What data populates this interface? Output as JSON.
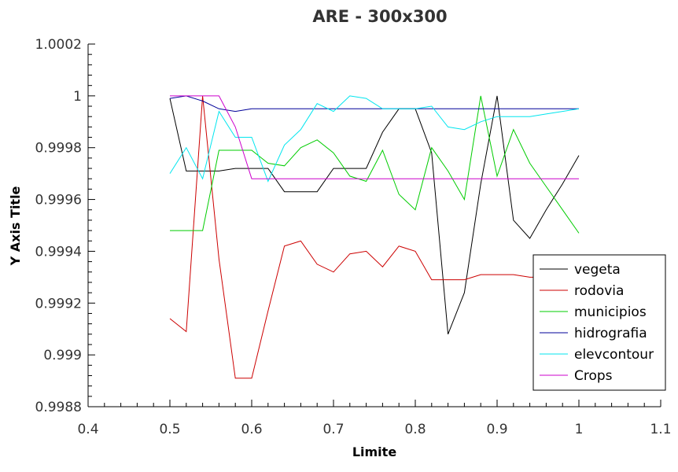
{
  "chart_data": {
    "type": "line",
    "title": "ARE - 300x300",
    "xlabel": "Limite",
    "ylabel": "Y Axis Title",
    "xlim": [
      0.4,
      1.1
    ],
    "ylim": [
      0.9988,
      1.0002
    ],
    "x_ticks": [
      {
        "value": 0.4,
        "label": "0.4"
      },
      {
        "value": 0.5,
        "label": "0.5"
      },
      {
        "value": 0.6,
        "label": "0.6"
      },
      {
        "value": 0.7,
        "label": "0.7"
      },
      {
        "value": 0.8,
        "label": "0.8"
      },
      {
        "value": 0.9,
        "label": "0.9"
      },
      {
        "value": 1.0,
        "label": "1"
      },
      {
        "value": 1.1,
        "label": "1.1"
      }
    ],
    "y_ticks": [
      {
        "value": 0.9988,
        "label": "0.9988"
      },
      {
        "value": 0.999,
        "label": "0.999"
      },
      {
        "value": 0.9992,
        "label": "0.9992"
      },
      {
        "value": 0.9994,
        "label": "0.9994"
      },
      {
        "value": 0.9996,
        "label": "0.9996"
      },
      {
        "value": 0.9998,
        "label": "0.9998"
      },
      {
        "value": 1.0,
        "label": "1"
      },
      {
        "value": 1.0002,
        "label": "1.0002"
      }
    ],
    "grid": false,
    "legend_position": "bottom-right",
    "x": [
      0.5,
      0.52,
      0.54,
      0.56,
      0.58,
      0.6,
      0.62,
      0.64,
      0.66,
      0.68,
      0.7,
      0.72,
      0.74,
      0.76,
      0.78,
      0.8,
      0.82,
      0.84,
      0.86,
      0.88,
      0.9,
      0.92,
      0.94,
      0.96,
      0.98,
      1.0
    ],
    "series": [
      {
        "name": "vegeta",
        "color": "#000000",
        "values": [
          0.99999,
          0.99971,
          0.99971,
          0.99971,
          0.99972,
          0.99972,
          0.99972,
          0.99963,
          0.99963,
          0.99963,
          0.99972,
          0.99972,
          0.99972,
          0.99986,
          0.99995,
          0.99995,
          0.99978,
          0.99908,
          0.99924,
          0.99966,
          1.0,
          0.99952,
          0.99945,
          0.99956,
          0.99966,
          0.99977
        ]
      },
      {
        "name": "rodovia",
        "color": "#cc0000",
        "values": [
          0.99914,
          0.99909,
          1.0,
          0.99937,
          0.99891,
          0.99891,
          0.99917,
          0.99942,
          0.99944,
          0.99935,
          0.99932,
          0.99939,
          0.9994,
          0.99934,
          0.99942,
          0.9994,
          0.99929,
          0.99929,
          0.99929,
          0.99931,
          0.99931,
          0.99931,
          0.9993,
          0.9993,
          0.9993,
          0.99931
        ]
      },
      {
        "name": "municipios",
        "color": "#00cc00",
        "values": [
          0.99948,
          0.99948,
          0.99948,
          0.99979,
          0.99979,
          0.99979,
          0.99974,
          0.99973,
          0.9998,
          0.99983,
          0.99978,
          0.99969,
          0.99967,
          0.99979,
          0.99962,
          0.99956,
          0.9998,
          0.99971,
          0.9996,
          1.0,
          0.99969,
          0.99987,
          0.99974,
          0.99965,
          0.99956,
          0.99947
        ]
      },
      {
        "name": "hidrografia",
        "color": "#000099",
        "values": [
          0.99999,
          1.0,
          0.99998,
          0.99995,
          0.99994,
          0.99995,
          0.99995,
          0.99995,
          0.99995,
          0.99995,
          0.99995,
          0.99995,
          0.99995,
          0.99995,
          0.99995,
          0.99995,
          0.99995,
          0.99995,
          0.99995,
          0.99995,
          0.99995,
          0.99995,
          0.99995,
          0.99995,
          0.99995,
          0.99995
        ]
      },
      {
        "name": "elevcontour",
        "color": "#00e5ee",
        "values": [
          0.9997,
          0.9998,
          0.99968,
          0.99994,
          0.99984,
          0.99984,
          0.99967,
          0.99981,
          0.99987,
          0.99997,
          0.99994,
          1.0,
          0.99999,
          0.99995,
          0.99995,
          0.99995,
          0.99996,
          0.99988,
          0.99987,
          0.9999,
          0.99992,
          0.99992,
          0.99992,
          0.99993,
          0.99994,
          0.99995
        ]
      },
      {
        "name": "Crops",
        "color": "#cc00cc",
        "values": [
          1.0,
          1.0,
          1.0,
          1.0,
          0.99988,
          0.99968,
          0.99968,
          0.99968,
          0.99968,
          0.99968,
          0.99968,
          0.99968,
          0.99968,
          0.99968,
          0.99968,
          0.99968,
          0.99968,
          0.99968,
          0.99968,
          0.99968,
          0.99968,
          0.99968,
          0.99968,
          0.99968,
          0.99968,
          0.99968
        ]
      }
    ]
  }
}
